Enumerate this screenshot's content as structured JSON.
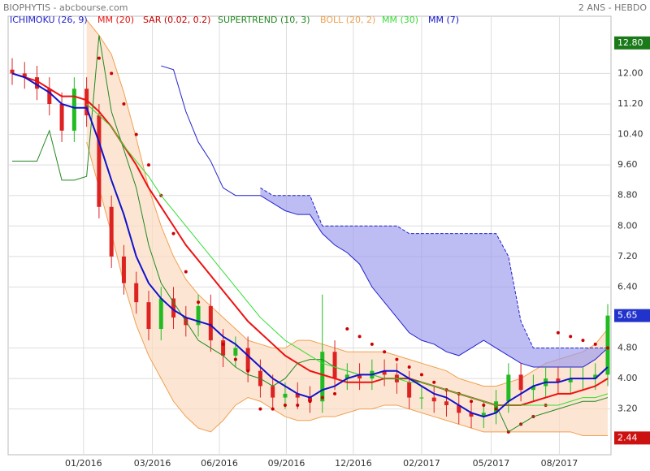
{
  "chart_data": {
    "type": "candlestick",
    "title": "BIOPHYTIS - abcbourse.com",
    "subtitle": "2 ANS - HEBDO",
    "x": [
      0,
      1,
      2,
      3,
      4,
      5,
      6,
      7,
      8,
      9,
      10,
      11,
      12,
      13,
      14,
      15,
      16,
      17,
      18,
      19,
      20,
      21,
      22,
      23,
      24,
      25,
      26,
      27,
      28,
      29,
      30,
      31,
      32,
      33,
      34,
      35,
      36,
      37,
      38,
      39,
      40,
      41,
      42,
      43,
      44,
      45,
      46,
      47,
      48
    ],
    "xlim": [
      0,
      48
    ],
    "xticks": [
      {
        "value": 5.75,
        "label": "01/2016"
      },
      {
        "value": 11.3,
        "label": "03/2016"
      },
      {
        "value": 16.7,
        "label": "06/2016"
      },
      {
        "value": 22.1,
        "label": "09/2016"
      },
      {
        "value": 27.5,
        "label": "12/2016"
      },
      {
        "value": 33.0,
        "label": "02/2017"
      },
      {
        "value": 38.6,
        "label": "05/2017"
      },
      {
        "value": 44.1,
        "label": "08/2017"
      }
    ],
    "ylim": [
      2.0,
      13.5
    ],
    "yticks": [
      {
        "value": 12.0,
        "label": "12.00"
      },
      {
        "value": 11.2,
        "label": "11.20"
      },
      {
        "value": 10.4,
        "label": "10.40"
      },
      {
        "value": 9.6,
        "label": "9.60"
      },
      {
        "value": 8.8,
        "label": "8.80"
      },
      {
        "value": 8.0,
        "label": "8.00"
      },
      {
        "value": 7.2,
        "label": "7.20"
      },
      {
        "value": 6.4,
        "label": "6.40"
      },
      {
        "value": 4.8,
        "label": "4.80"
      },
      {
        "value": 4.0,
        "label": "4.00"
      },
      {
        "value": 3.2,
        "label": "3.20"
      }
    ],
    "grid": true,
    "price_markers": [
      {
        "value": 12.8,
        "label": "12.80",
        "color": "#1a7a1a"
      },
      {
        "value": 5.65,
        "label": "5.65",
        "color": "#2233cc"
      },
      {
        "value": 2.44,
        "label": "2.44",
        "color": "#cc1111"
      }
    ],
    "candles": {
      "up_color": "#22bb22",
      "down_color": "#dd2222",
      "open": [
        12.1,
        12.0,
        11.9,
        11.6,
        11.2,
        10.5,
        11.6,
        10.9,
        8.5,
        7.2,
        6.5,
        6.0,
        5.3,
        6.1,
        5.6,
        5.4,
        5.9,
        5.0,
        4.6,
        4.8,
        4.2,
        3.8,
        3.5,
        3.6,
        3.5,
        3.4,
        4.7,
        4.0,
        4.1,
        4.0,
        4.2,
        4.1,
        3.9,
        3.5,
        3.5,
        3.4,
        3.3,
        3.1,
        3.0,
        3.1,
        3.4,
        4.1,
        3.7,
        3.8,
        4.0,
        3.9,
        4.0,
        4.0,
        4.1
      ],
      "high": [
        12.4,
        12.3,
        12.2,
        11.9,
        11.5,
        11.9,
        11.9,
        11.2,
        8.8,
        7.5,
        6.8,
        6.3,
        6.4,
        6.4,
        5.9,
        6.2,
        6.2,
        5.3,
        5.1,
        5.1,
        4.5,
        4.1,
        3.9,
        3.9,
        3.8,
        6.2,
        5.0,
        4.4,
        4.4,
        4.5,
        4.5,
        4.4,
        4.2,
        3.8,
        3.8,
        3.7,
        3.6,
        3.4,
        3.4,
        3.7,
        4.4,
        4.4,
        4.1,
        4.3,
        4.3,
        4.3,
        4.3,
        4.4,
        5.95
      ],
      "low": [
        11.7,
        11.6,
        11.3,
        10.9,
        10.2,
        10.2,
        10.6,
        8.2,
        6.9,
        6.2,
        5.7,
        5.0,
        5.0,
        5.3,
        5.1,
        5.1,
        4.7,
        4.3,
        4.3,
        3.9,
        3.5,
        3.2,
        3.2,
        3.2,
        3.1,
        3.1,
        3.7,
        3.7,
        3.7,
        3.7,
        3.8,
        3.6,
        3.2,
        3.2,
        3.1,
        3.0,
        2.8,
        2.7,
        2.7,
        2.8,
        3.1,
        3.4,
        3.4,
        3.5,
        3.6,
        3.6,
        3.7,
        3.7,
        3.8
      ],
      "close": [
        12.0,
        11.9,
        11.6,
        11.2,
        10.5,
        11.6,
        10.9,
        8.5,
        7.2,
        6.5,
        6.0,
        5.3,
        6.1,
        5.6,
        5.4,
        5.9,
        5.0,
        4.6,
        4.8,
        4.2,
        3.8,
        3.5,
        3.6,
        3.5,
        3.4,
        4.7,
        4.0,
        4.1,
        4.0,
        4.2,
        4.1,
        3.9,
        3.5,
        3.5,
        3.4,
        3.3,
        3.1,
        3.0,
        3.1,
        3.4,
        4.1,
        3.7,
        3.8,
        4.0,
        3.9,
        4.0,
        4.0,
        4.1,
        5.65
      ]
    },
    "series": [
      {
        "name": "ICHIMOKU (26, 9)",
        "color": "#2222cc",
        "fill": "#9999ee",
        "span_a": [
          null,
          null,
          null,
          null,
          null,
          null,
          null,
          null,
          null,
          null,
          null,
          null,
          12.2,
          12.1,
          11.0,
          10.2,
          9.7,
          9.0,
          8.8,
          8.8,
          8.8,
          8.6,
          8.4,
          8.3,
          8.3,
          7.8,
          7.5,
          7.3,
          7.0,
          6.4,
          6.0,
          5.6,
          5.2,
          5.0,
          4.9,
          4.7,
          4.6,
          4.8,
          5.0,
          4.8,
          4.6,
          4.4,
          4.3,
          4.3,
          4.3,
          4.3,
          4.3,
          4.5,
          4.8
        ],
        "span_b": [
          null,
          null,
          null,
          null,
          null,
          null,
          null,
          null,
          null,
          null,
          null,
          null,
          null,
          null,
          null,
          null,
          null,
          null,
          null,
          null,
          9.0,
          8.8,
          8.8,
          8.8,
          8.8,
          8.0,
          8.0,
          8.0,
          8.0,
          8.0,
          8.0,
          8.0,
          7.8,
          7.8,
          7.8,
          7.8,
          7.8,
          7.8,
          7.8,
          7.8,
          7.2,
          5.5,
          4.8,
          4.8,
          4.8,
          4.8,
          4.8,
          4.8,
          4.8
        ]
      },
      {
        "name": "MM (20)",
        "color": "#ee1111",
        "values": [
          12.0,
          11.9,
          11.8,
          11.6,
          11.4,
          11.4,
          11.3,
          11.0,
          10.6,
          10.1,
          9.6,
          9.0,
          8.5,
          8.0,
          7.5,
          7.1,
          6.7,
          6.3,
          5.9,
          5.5,
          5.2,
          4.9,
          4.6,
          4.4,
          4.2,
          4.1,
          4.0,
          3.9,
          3.9,
          3.9,
          4.0,
          4.0,
          4.0,
          3.9,
          3.8,
          3.7,
          3.6,
          3.5,
          3.4,
          3.3,
          3.3,
          3.3,
          3.4,
          3.5,
          3.6,
          3.6,
          3.7,
          3.8,
          4.0
        ]
      },
      {
        "name": "SAR (0.02, 0.2)",
        "color": "#cc0000",
        "values": [
          null,
          null,
          null,
          null,
          null,
          null,
          null,
          12.4,
          12.0,
          11.2,
          10.4,
          9.6,
          8.8,
          7.8,
          6.8,
          6.0,
          5.4,
          4.9,
          4.5,
          4.2,
          3.2,
          3.2,
          3.3,
          3.3,
          3.4,
          3.5,
          3.6,
          5.3,
          5.1,
          4.9,
          4.7,
          4.5,
          4.3,
          4.1,
          3.9,
          3.7,
          3.6,
          3.4,
          3.3,
          3.2,
          2.6,
          2.8,
          3.0,
          3.3,
          5.2,
          5.1,
          5.0,
          4.9,
          4.8
        ]
      },
      {
        "name": "SUPERTREND (10, 3)",
        "color": "#228822",
        "values": [
          9.7,
          9.7,
          9.7,
          10.5,
          9.2,
          9.2,
          9.3,
          13.0,
          11.0,
          10.0,
          9.0,
          7.5,
          6.5,
          6.0,
          5.5,
          5.0,
          4.8,
          4.6,
          4.3,
          4.1,
          4.0,
          3.8,
          4.0,
          4.4,
          4.5,
          4.5,
          4.3,
          4.2,
          4.1,
          4.1,
          4.0,
          4.0,
          4.0,
          3.9,
          3.8,
          3.7,
          3.6,
          3.5,
          3.4,
          3.3,
          2.6,
          2.8,
          3.0,
          3.1,
          3.2,
          3.3,
          3.4,
          3.4,
          3.5
        ]
      },
      {
        "name": "BOLL (20, 2)",
        "color": "#f0a050",
        "fill": "#fbdcc0",
        "upper": [
          null,
          null,
          null,
          null,
          null,
          null,
          13.4,
          13.0,
          12.5,
          11.5,
          10.3,
          9.0,
          8.0,
          7.2,
          6.6,
          6.2,
          5.9,
          5.6,
          5.3,
          5.0,
          4.9,
          4.8,
          4.8,
          5.0,
          5.0,
          4.9,
          4.8,
          4.7,
          4.7,
          4.7,
          4.7,
          4.6,
          4.5,
          4.4,
          4.3,
          4.2,
          4.0,
          3.9,
          3.8,
          3.8,
          3.9,
          4.0,
          4.2,
          4.4,
          4.5,
          4.6,
          4.7,
          4.9,
          5.3
        ],
        "lower": [
          null,
          null,
          null,
          null,
          null,
          null,
          10.2,
          9.0,
          7.8,
          6.5,
          5.4,
          4.6,
          4.0,
          3.4,
          3.0,
          2.7,
          2.6,
          2.9,
          3.3,
          3.5,
          3.4,
          3.2,
          3.0,
          2.9,
          2.9,
          3.0,
          3.0,
          3.1,
          3.2,
          3.2,
          3.3,
          3.3,
          3.2,
          3.1,
          3.0,
          2.9,
          2.8,
          2.7,
          2.6,
          2.6,
          2.6,
          2.6,
          2.6,
          2.6,
          2.6,
          2.6,
          2.5,
          2.5,
          2.5
        ]
      },
      {
        "name": "MM (30)",
        "color": "#33dd33",
        "values": [
          null,
          null,
          null,
          null,
          null,
          null,
          11.2,
          10.9,
          10.6,
          10.1,
          9.7,
          9.3,
          8.8,
          8.4,
          8.0,
          7.6,
          7.2,
          6.8,
          6.4,
          6.0,
          5.6,
          5.3,
          5.0,
          4.8,
          4.6,
          4.4,
          4.3,
          4.2,
          4.1,
          4.1,
          4.0,
          4.0,
          3.9,
          3.9,
          3.8,
          3.7,
          3.6,
          3.5,
          3.4,
          3.3,
          3.3,
          3.3,
          3.3,
          3.3,
          3.3,
          3.4,
          3.5,
          3.5,
          3.6
        ]
      },
      {
        "name": "MM (7)",
        "color": "#1111cc",
        "values": [
          12.0,
          11.9,
          11.7,
          11.5,
          11.2,
          11.1,
          11.1,
          10.2,
          9.2,
          8.3,
          7.2,
          6.5,
          6.1,
          5.8,
          5.6,
          5.5,
          5.4,
          5.1,
          4.9,
          4.6,
          4.3,
          4.0,
          3.8,
          3.6,
          3.5,
          3.7,
          3.8,
          4.0,
          4.1,
          4.1,
          4.2,
          4.2,
          4.0,
          3.8,
          3.6,
          3.5,
          3.3,
          3.1,
          3.0,
          3.1,
          3.4,
          3.6,
          3.8,
          3.9,
          3.9,
          4.0,
          4.0,
          4.0,
          4.3
        ]
      }
    ]
  }
}
